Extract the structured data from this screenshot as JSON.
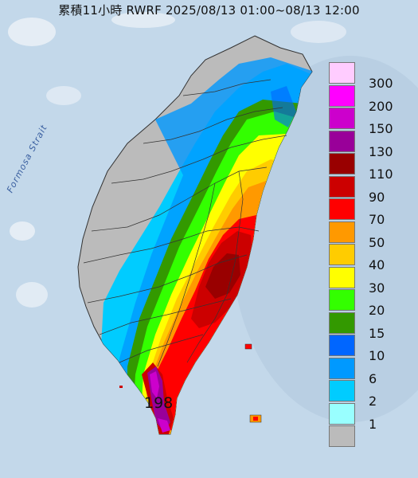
{
  "title": "累積11小時 RWRF 2025/08/13 01:00~08/13 12:00",
  "sea_label": "Formosa Strait",
  "max_value_label": "198",
  "legend": [
    {
      "label": "300",
      "color": "#ffccff"
    },
    {
      "label": "200",
      "color": "#ff00ff"
    },
    {
      "label": "150",
      "color": "#cc00cc"
    },
    {
      "label": "130",
      "color": "#990099"
    },
    {
      "label": "110",
      "color": "#990000"
    },
    {
      "label": "90",
      "color": "#cc0000"
    },
    {
      "label": "70",
      "color": "#ff0000"
    },
    {
      "label": "50",
      "color": "#ff9900"
    },
    {
      "label": "40",
      "color": "#ffcc00"
    },
    {
      "label": "30",
      "color": "#ffff00"
    },
    {
      "label": "20",
      "color": "#33ff00"
    },
    {
      "label": "15",
      "color": "#339900"
    },
    {
      "label": "10",
      "color": "#0066ff"
    },
    {
      "label": "6",
      "color": "#0099ff"
    },
    {
      "label": "2",
      "color": "#00ccff"
    },
    {
      "label": "1",
      "color": "#99ffff"
    },
    {
      "label": "",
      "color": "#bbbbbb"
    }
  ]
}
